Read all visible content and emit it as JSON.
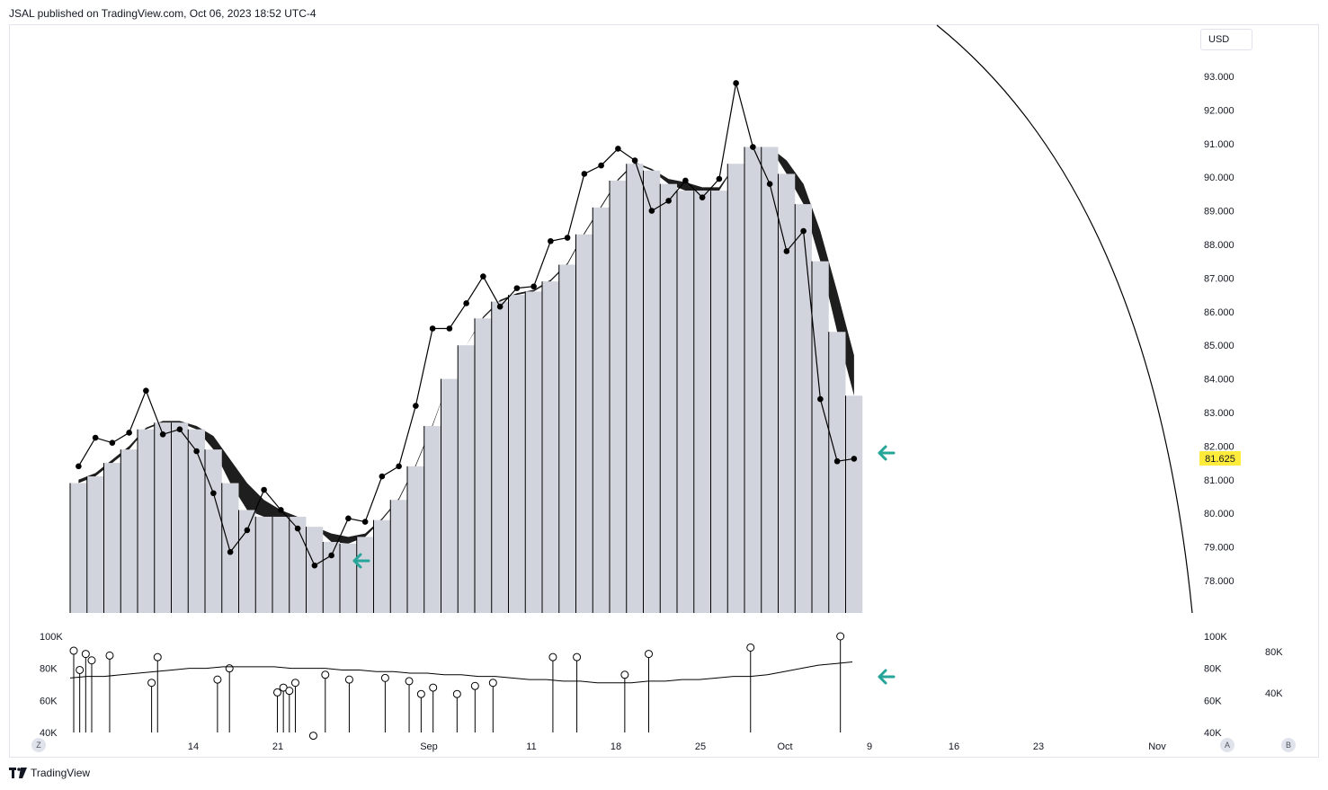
{
  "header": {
    "published": "JSAL published on TradingView.com, Oct 06, 2023 18:52 UTC-4"
  },
  "currency": "USD",
  "footer": {
    "brand": "TradingView"
  },
  "buttons": {
    "z": "Z",
    "a": "A",
    "b": "B"
  },
  "colors": {
    "bar": "#d1d4dc",
    "cloud": "#1e1e1e",
    "line": "#000000",
    "arrow": "#26a69a",
    "price_tag": "#ffeb3b"
  },
  "chart_data": [
    {
      "type": "bar",
      "panel": "price",
      "y_axis_ticks": [
        "93.000",
        "92.000",
        "91.000",
        "90.000",
        "89.000",
        "88.000",
        "87.000",
        "86.000",
        "85.000",
        "84.000",
        "83.000",
        "82.000",
        "81.000",
        "80.000",
        "79.000",
        "78.000"
      ],
      "ylim": [
        77.0,
        93.5
      ],
      "x_axis_ticks": [
        "14",
        "21",
        "Sep",
        "11",
        "18",
        "25",
        "Oct",
        "9",
        "16",
        "23",
        "Nov"
      ],
      "last_price_label": "81.625",
      "series": [
        {
          "kind": "bars",
          "values": [
            80.9,
            81.1,
            81.5,
            81.9,
            82.5,
            82.7,
            82.7,
            82.5,
            81.9,
            80.9,
            80.1,
            79.9,
            79.9,
            79.9,
            79.6,
            79.15,
            79.1,
            79.3,
            79.8,
            80.4,
            81.4,
            82.6,
            84.0,
            85.0,
            85.8,
            86.3,
            86.5,
            86.6,
            86.9,
            87.4,
            88.3,
            89.1,
            89.9,
            90.4,
            90.2,
            89.8,
            89.6,
            89.6,
            89.6,
            90.4,
            90.9,
            90.9,
            90.1,
            89.2,
            87.5,
            85.4,
            83.5
          ]
        },
        {
          "kind": "line_with_dots",
          "values": [
            81.4,
            82.25,
            82.1,
            82.4,
            83.65,
            82.35,
            82.5,
            81.85,
            80.6,
            78.85,
            79.5,
            80.7,
            80.1,
            79.55,
            78.45,
            78.75,
            79.85,
            79.75,
            81.1,
            81.4,
            83.2,
            85.5,
            85.5,
            86.25,
            87.05,
            86.15,
            86.7,
            86.75,
            88.1,
            88.2,
            90.1,
            90.35,
            90.85,
            90.5,
            89.0,
            89.3,
            89.9,
            89.4,
            89.95,
            92.8,
            90.9,
            89.8,
            87.8,
            88.4,
            83.4,
            81.55,
            81.625
          ]
        },
        {
          "kind": "cloud_upper",
          "values": [
            81.0,
            81.2,
            81.6,
            82.0,
            82.55,
            82.75,
            82.75,
            82.6,
            82.3,
            81.6,
            80.9,
            80.4,
            80.1,
            79.9,
            79.6,
            79.4,
            79.3,
            79.4,
            79.85,
            80.45,
            81.45,
            82.65,
            84.0,
            85.0,
            85.85,
            86.35,
            86.55,
            86.65,
            86.95,
            87.45,
            88.35,
            89.15,
            89.95,
            90.45,
            90.25,
            89.95,
            89.85,
            89.7,
            89.7,
            90.4,
            90.9,
            90.9,
            90.5,
            89.8,
            88.4,
            86.6,
            84.7
          ]
        }
      ]
    },
    {
      "type": "scatter",
      "panel": "volume",
      "y_axis_ticks": [
        "100K",
        "80K",
        "60K",
        "40K"
      ],
      "y_axis_ticks_secondary": [
        "80K",
        "40K"
      ],
      "ylim": [
        40,
        100
      ],
      "values": [
        91,
        79,
        89,
        85,
        null,
        null,
        88,
        null,
        null,
        null,
        null,
        null,
        null,
        71,
        87,
        null,
        null,
        null,
        null,
        null,
        null,
        null,
        null,
        null,
        73,
        null,
        80,
        null,
        null,
        null,
        null,
        null,
        null,
        null,
        65,
        68,
        66,
        71,
        null,
        null,
        38,
        null,
        76,
        null,
        null,
        null,
        73,
        null,
        null,
        null,
        null,
        null,
        74,
        null,
        null,
        null,
        72,
        null,
        64,
        null,
        68,
        null,
        null,
        null,
        64,
        null,
        null,
        69,
        null,
        null,
        71,
        null,
        null,
        null,
        null,
        null,
        null,
        null,
        null,
        null,
        87,
        null,
        null,
        null,
        87,
        null,
        null,
        null,
        null,
        null,
        null,
        null,
        76,
        null,
        null,
        null,
        89,
        null,
        null,
        null,
        null,
        null,
        null,
        null,
        null,
        null,
        null,
        null,
        null,
        null,
        null,
        null,
        null,
        93,
        null,
        null,
        null,
        null,
        null,
        null,
        null,
        null,
        null,
        null,
        null,
        null,
        null,
        null,
        100
      ],
      "ma_values": [
        74,
        75,
        75,
        76,
        77,
        78,
        79,
        80,
        80,
        81,
        81,
        81,
        81,
        80,
        80,
        80,
        79,
        79,
        78,
        78,
        77,
        77,
        76,
        76,
        75,
        75,
        74,
        73,
        73,
        72,
        72,
        71,
        71,
        71,
        72,
        72,
        73,
        73,
        74,
        75,
        75,
        76,
        78,
        80,
        82,
        83,
        84
      ]
    }
  ]
}
